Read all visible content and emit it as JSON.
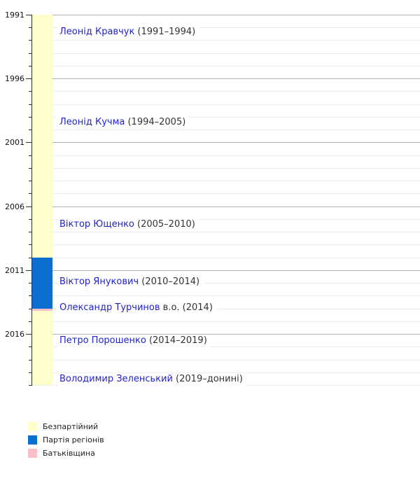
{
  "chart_data": {
    "type": "bar",
    "subtype": "vertical-timeline",
    "title": "",
    "year_range": [
      1991,
      2020
    ],
    "tick_major": [
      1991,
      1996,
      2001,
      2006,
      2011,
      2016
    ],
    "tick_minor_step": 1,
    "grid": true,
    "legend_position": "bottom-left",
    "segments": [
      {
        "party": "Безпартійний",
        "start": 1991,
        "end": 2010,
        "color": "#FFFFCC"
      },
      {
        "party": "Партія регіонів",
        "start": 2010,
        "end": 2014,
        "color": "#0B6FD0"
      },
      {
        "party": "Батьківщина",
        "start": 2014,
        "end": 2014.2,
        "color": "#F9C0CB"
      },
      {
        "party": "Безпартійний",
        "start": 2014.2,
        "end": 2020,
        "color": "#FFFFCC"
      }
    ],
    "presidents": [
      {
        "name": "Леонід Кравчук",
        "term": "(1991–1994)",
        "start": 1991,
        "end": 1994,
        "label_year": 1992.4
      },
      {
        "name": "Леонід Кучма",
        "term": "(1994–2005)",
        "start": 1994,
        "end": 2005,
        "label_year": 1999.5
      },
      {
        "name": "Віктор Ющенко",
        "term": "(2005–2010)",
        "start": 2005,
        "end": 2010,
        "label_year": 2007.5
      },
      {
        "name": "Віктор Янукович",
        "term": "(2010–2014)",
        "start": 2010,
        "end": 2014,
        "label_year": 2012.0
      },
      {
        "name": "Олександр Турчинов",
        "term": "в.о. (2014)",
        "start": 2014,
        "end": 2014.2,
        "label_year": 2014.0
      },
      {
        "name": "Петро Порошенко",
        "term": "(2014–2019)",
        "start": 2014,
        "end": 2019,
        "label_year": 2016.6
      },
      {
        "name": "Володимир Зеленський",
        "term": "(2019–донині)",
        "start": 2019,
        "end": 2020,
        "label_year": 2019.6
      }
    ],
    "legend": [
      {
        "label": "Безпартійний",
        "color": "#FFFFCC"
      },
      {
        "label": "Партія регіонів",
        "color": "#0B6FD0"
      },
      {
        "label": "Батьківщина",
        "color": "#F9C0CB"
      }
    ],
    "colors": {
      "president_name": "#2222CC",
      "term_text": "#333333",
      "axis": "#333333",
      "grid_major": "#B0B0B0",
      "grid_minor": "#EDEDED",
      "background": "#FFFFFF"
    }
  }
}
